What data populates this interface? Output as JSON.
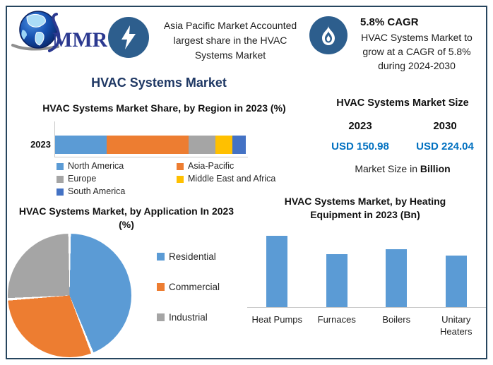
{
  "brand": {
    "logo_text": "MMR"
  },
  "header": {
    "highlight_asia": {
      "icon": "lightning-bolt",
      "text": "Asia Pacific Market Accounted largest share in the HVAC Systems Market"
    },
    "highlight_cagr": {
      "icon": "flame",
      "headline": "5.8% CAGR",
      "text": "HVAC Systems Market to grow at a CAGR of 5.8% during 2024-2030"
    }
  },
  "main_title": "HVAC Systems Market",
  "market_size": {
    "title": "HVAC Systems Market Size",
    "year_left": "2023",
    "year_right": "2030",
    "value_left": "USD 150.98",
    "value_right": "USD 224.04",
    "caption_prefix": "Market Size in ",
    "caption_bold": "Billion",
    "value_color": "#0070c0"
  },
  "chart_data": [
    {
      "id": "region_share",
      "type": "bar",
      "subtype": "stacked-horizontal",
      "title": "HVAC Systems Market Share, by Region in 2023 (%)",
      "categories": [
        "2023"
      ],
      "series": [
        {
          "name": "North America",
          "color": "#5b9bd5",
          "values": [
            27
          ]
        },
        {
          "name": "Asia-Pacific",
          "color": "#ed7d31",
          "values": [
            43
          ]
        },
        {
          "name": "Europe",
          "color": "#a5a5a5",
          "values": [
            14
          ]
        },
        {
          "name": "Middle East and Africa",
          "color": "#ffc000",
          "values": [
            9
          ]
        },
        {
          "name": "South America",
          "color": "#4472c4",
          "values": [
            7
          ]
        }
      ],
      "xlim": [
        0,
        100
      ],
      "legend_position": "bottom",
      "grid": false
    },
    {
      "id": "application_share",
      "type": "pie",
      "title": "HVAC Systems Market, by Application In 2023 (%)",
      "labels": [
        "Residential",
        "Commercial",
        "Industrial"
      ],
      "values": [
        44,
        30,
        26
      ],
      "colors": [
        "#5b9bd5",
        "#ed7d31",
        "#a5a5a5"
      ],
      "start_angle_deg": 0,
      "legend_position": "right"
    },
    {
      "id": "heating_equipment",
      "type": "bar",
      "title": "HVAC Systems Market, by Heating Equipment in 2023 (Bn)",
      "categories": [
        "Heat Pumps",
        "Furnaces",
        "Boilers",
        "Unitary Heaters"
      ],
      "values": [
        100,
        74,
        81,
        72
      ],
      "bar_color": "#5b9bd5",
      "note": "no y-axis shown; values are relative bar heights (% of tallest bar)",
      "grid": false
    }
  ],
  "palette": {
    "border": "#27455e",
    "navy_title": "#1f3864",
    "icon_circle": "#2d5e8d",
    "value_blue": "#0070c0",
    "chart_blue": "#5b9bd5",
    "orange": "#ed7d31",
    "gray": "#a5a5a5",
    "yellow": "#ffc000",
    "dark_blue": "#4472c4"
  }
}
